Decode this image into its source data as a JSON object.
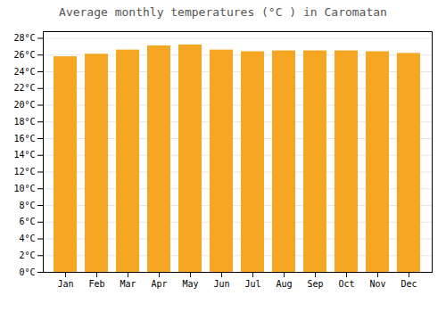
{
  "chart_data": {
    "type": "bar",
    "title": "Average monthly temperatures (°C ) in Caromatan",
    "categories": [
      "Jan",
      "Feb",
      "Mar",
      "Apr",
      "May",
      "Jun",
      "Jul",
      "Aug",
      "Sep",
      "Oct",
      "Nov",
      "Dec"
    ],
    "values": [
      25.8,
      26.1,
      26.6,
      27.1,
      27.2,
      26.6,
      26.4,
      26.5,
      26.5,
      26.5,
      26.4,
      26.2
    ],
    "color": "#F5A623",
    "ylim": [
      0,
      28.8
    ],
    "yticks": [
      {
        "value": 0,
        "label": "0°C"
      },
      {
        "value": 2,
        "label": "2°C"
      },
      {
        "value": 4,
        "label": "4°C"
      },
      {
        "value": 6,
        "label": "6°C"
      },
      {
        "value": 8,
        "label": "8°C"
      },
      {
        "value": 10,
        "label": "10°C"
      },
      {
        "value": 12,
        "label": "12°C"
      },
      {
        "value": 14,
        "label": "14°C"
      },
      {
        "value": 16,
        "label": "16°C"
      },
      {
        "value": 18,
        "label": "18°C"
      },
      {
        "value": 20,
        "label": "20°C"
      },
      {
        "value": 22,
        "label": "22°C"
      },
      {
        "value": 24,
        "label": "24°C"
      },
      {
        "value": 26,
        "label": "26°C"
      },
      {
        "value": 28,
        "label": "28°C"
      }
    ],
    "grid": true
  }
}
